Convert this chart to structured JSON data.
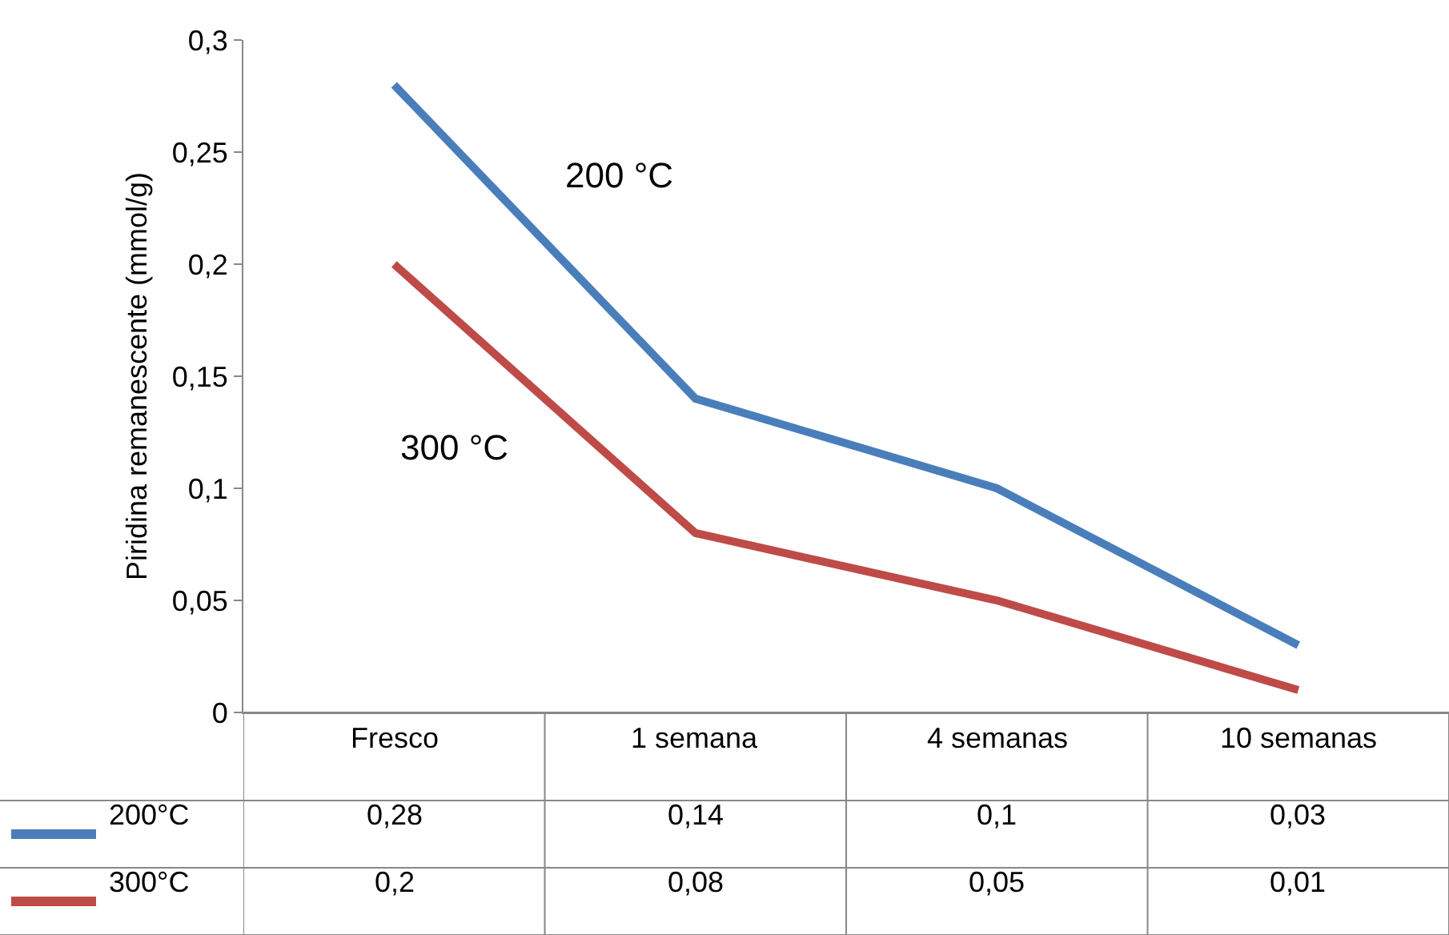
{
  "chart_data": {
    "type": "line",
    "ylabel": "Piridina remanescente (mmol/g)",
    "categories": [
      "Fresco",
      "1 semana",
      "4 semanas",
      "10 semanas"
    ],
    "series": [
      {
        "name": "200°C",
        "color": "#4a7ebb",
        "values": [
          0.28,
          0.14,
          0.1,
          0.03
        ],
        "value_labels": [
          "0,28",
          "0,14",
          "0,1",
          "0,03"
        ]
      },
      {
        "name": "300°C",
        "color": "#be4b48",
        "values": [
          0.2,
          0.08,
          0.05,
          0.01
        ],
        "value_labels": [
          "0,2",
          "0,08",
          "0,05",
          "0,01"
        ]
      }
    ],
    "annotations": [
      "200 °C",
      "300 °C"
    ],
    "ylim": [
      0,
      0.3
    ],
    "yticks": [
      {
        "value": 0,
        "label": "0"
      },
      {
        "value": 0.05,
        "label": "0,05"
      },
      {
        "value": 0.1,
        "label": "0,1"
      },
      {
        "value": 0.15,
        "label": "0,15"
      },
      {
        "value": 0.2,
        "label": "0,2"
      },
      {
        "value": 0.25,
        "label": "0,25"
      },
      {
        "value": 0.3,
        "label": "0,3"
      }
    ],
    "grid": false,
    "legend": "bottom left",
    "marker": "none",
    "line_style": "solid"
  }
}
